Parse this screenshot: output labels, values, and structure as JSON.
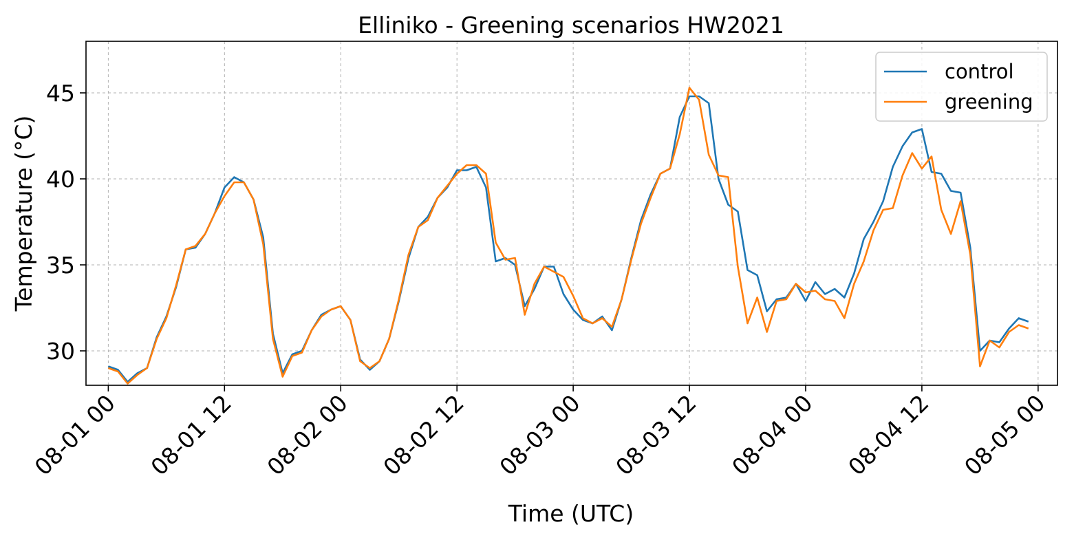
{
  "chart_data": {
    "type": "line",
    "title": "Elliniko - Greening scenarios HW2021",
    "xlabel": "Time (UTC)",
    "ylabel": "Temperature (°C)",
    "x_start": "2021-08-01 00:00",
    "x_step_hours": 1,
    "xlim_hours": [
      -2.3,
      98
    ],
    "ylim": [
      28.0,
      48.0
    ],
    "xticks": [
      {
        "hour": 0,
        "label": "08-01 00"
      },
      {
        "hour": 12,
        "label": "08-01 12"
      },
      {
        "hour": 24,
        "label": "08-02 00"
      },
      {
        "hour": 36,
        "label": "08-02 12"
      },
      {
        "hour": 48,
        "label": "08-03 00"
      },
      {
        "hour": 60,
        "label": "08-03 12"
      },
      {
        "hour": 72,
        "label": "08-04 00"
      },
      {
        "hour": 84,
        "label": "08-04 12"
      },
      {
        "hour": 96,
        "label": "08-05 00"
      }
    ],
    "yticks": [
      30,
      35,
      40,
      45
    ],
    "grid": true,
    "legend_position": "top-right",
    "series": [
      {
        "name": "control",
        "color": "#1f77b4",
        "values": [
          29.1,
          28.9,
          28.2,
          28.7,
          29.0,
          30.8,
          32.0,
          33.7,
          35.9,
          36.0,
          36.8,
          38.0,
          39.5,
          40.1,
          39.8,
          38.8,
          36.6,
          31.0,
          28.7,
          29.8,
          30.0,
          31.2,
          32.1,
          32.4,
          32.6,
          31.8,
          29.5,
          28.9,
          29.4,
          30.7,
          32.9,
          35.4,
          37.2,
          37.8,
          38.9,
          39.5,
          40.5,
          40.5,
          40.7,
          39.5,
          35.2,
          35.4,
          35.0,
          32.6,
          33.6,
          34.9,
          34.9,
          33.3,
          32.4,
          31.8,
          31.6,
          32.0,
          31.2,
          33.0,
          35.4,
          37.6,
          39.1,
          40.3,
          40.6,
          43.6,
          44.8,
          44.8,
          44.4,
          40.0,
          38.5,
          38.1,
          34.7,
          34.4,
          32.3,
          33.0,
          33.1,
          33.9,
          32.9,
          34.0,
          33.3,
          33.6,
          33.1,
          34.5,
          36.5,
          37.5,
          38.7,
          40.7,
          41.9,
          42.7,
          42.9,
          40.4,
          40.3,
          39.3,
          39.2,
          36.0,
          30.0,
          30.6,
          30.5,
          31.3,
          31.9,
          31.7
        ]
      },
      {
        "name": "greening",
        "color": "#ff7f0e",
        "values": [
          29.0,
          28.8,
          28.1,
          28.6,
          29.0,
          30.7,
          31.9,
          33.8,
          35.9,
          36.1,
          36.8,
          38.0,
          39.0,
          39.8,
          39.8,
          38.8,
          36.2,
          30.7,
          28.5,
          29.7,
          29.9,
          31.2,
          32.0,
          32.4,
          32.6,
          31.8,
          29.4,
          29.0,
          29.4,
          30.7,
          33.0,
          35.6,
          37.2,
          37.6,
          38.9,
          39.6,
          40.3,
          40.8,
          40.8,
          40.3,
          36.3,
          35.3,
          35.4,
          32.1,
          33.9,
          34.9,
          34.6,
          34.3,
          33.2,
          31.9,
          31.6,
          31.9,
          31.4,
          33.0,
          35.3,
          37.4,
          38.9,
          40.3,
          40.6,
          42.6,
          45.3,
          44.6,
          41.4,
          40.2,
          40.1,
          34.9,
          31.6,
          33.1,
          31.1,
          32.9,
          33.0,
          33.9,
          33.4,
          33.5,
          33.0,
          32.9,
          31.9,
          33.9,
          35.2,
          37.0,
          38.2,
          38.3,
          40.2,
          41.5,
          40.6,
          41.3,
          38.2,
          36.8,
          38.7,
          35.6,
          29.1,
          30.6,
          30.2,
          31.1,
          31.5,
          31.3
        ]
      }
    ]
  }
}
